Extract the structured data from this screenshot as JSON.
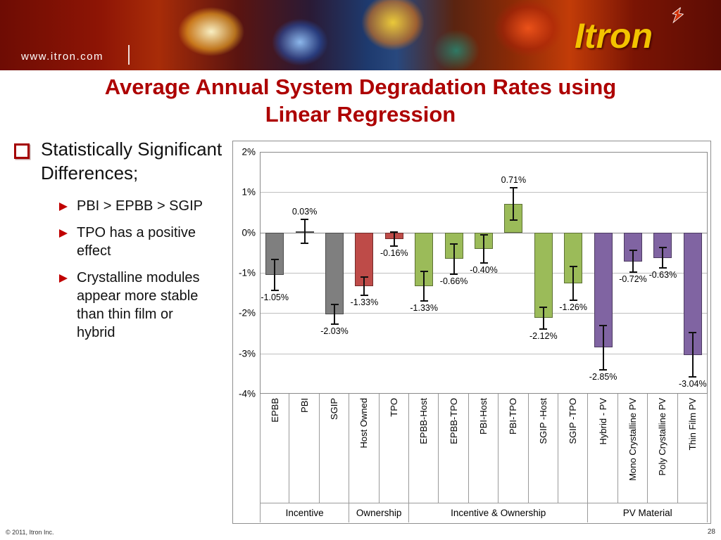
{
  "banner": {
    "website": "www.itron.com",
    "logo_text": "Itron"
  },
  "title": {
    "line1": "Average Annual System Degradation Rates using",
    "line2": "Linear Regression"
  },
  "bullets": {
    "main": "Statistically Significant Differences;",
    "sub": [
      "PBI > EPBB > SGIP",
      "TPO has a positive effect",
      "Crystalline modules appear more stable than thin film or hybrid"
    ]
  },
  "footer": {
    "copyright": "© 2011, Itron Inc.",
    "page_number": "28"
  },
  "colors": {
    "title_red": "#AD0000",
    "bullet_red": "#C00000",
    "banner_dark_red": "#6E0C04",
    "logo_yellow": "#F3C300"
  },
  "chart_data": {
    "type": "bar",
    "title": "Average Annual System Degradation Rates using Linear Regression",
    "xlabel": "",
    "ylabel": "",
    "ylim": [
      -4,
      2
    ],
    "yticks": [
      "2%",
      "1%",
      "0%",
      "-1%",
      "-2%",
      "-3%",
      "-4%"
    ],
    "ytick_values": [
      2,
      1,
      0,
      -1,
      -2,
      -3,
      -4
    ],
    "grid": true,
    "legend": "none",
    "categories": [
      "EPBB",
      "PBI",
      "SGIP",
      "Host Owned",
      "TPO",
      "EPBB-Host",
      "EPBB-TPO",
      "PBI-Host",
      "PBI-TPO",
      "SGIP -Host",
      "SGIP -TPO",
      "Hybrid - PV",
      "Mono Crystalline PV",
      "Poly Crystalline PV",
      "Thin Film PV"
    ],
    "values": [
      -1.05,
      0.03,
      -2.03,
      -1.33,
      -0.16,
      -1.33,
      -0.66,
      -0.4,
      0.71,
      -2.12,
      -1.26,
      -2.85,
      -0.72,
      -0.63,
      -3.04
    ],
    "data_labels": [
      "-1.05%",
      "0.03%",
      "-2.03%",
      "-1.33%",
      "-0.16%",
      "-1.33%",
      "-0.66%",
      "-0.40%",
      "0.71%",
      "-2.12%",
      "-1.26%",
      "-2.85%",
      "-0.72%",
      "-0.63%",
      "-3.04%"
    ],
    "error_bars": [
      0.38,
      0.3,
      0.25,
      0.22,
      0.17,
      0.37,
      0.37,
      0.35,
      0.4,
      0.27,
      0.42,
      0.55,
      0.27,
      0.25,
      0.55
    ],
    "bar_colors": [
      "#7F7F7F",
      "#7F7F7F",
      "#7F7F7F",
      "#BE4B48",
      "#BE4B48",
      "#9BBB59",
      "#9BBB59",
      "#9BBB59",
      "#9BBB59",
      "#9BBB59",
      "#9BBB59",
      "#8064A2",
      "#8064A2",
      "#8064A2",
      "#8064A2"
    ],
    "groups": [
      {
        "label": "Incentive",
        "span": 3
      },
      {
        "label": "Ownership",
        "span": 2
      },
      {
        "label": "Incentive & Ownership",
        "span": 6
      },
      {
        "label": "PV Material",
        "span": 4
      }
    ]
  }
}
